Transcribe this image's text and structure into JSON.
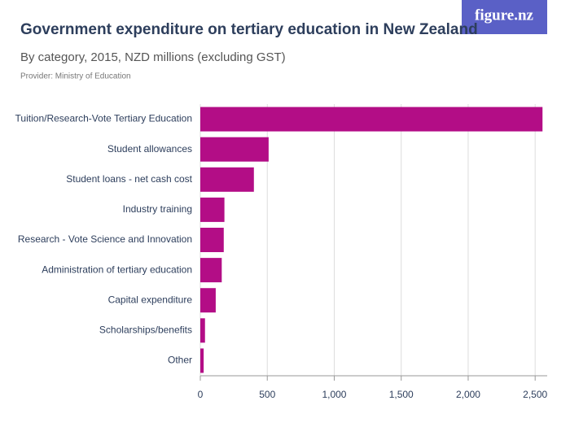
{
  "logo": "figure.nz",
  "chart_data": {
    "type": "hbar",
    "title": "Government expenditure on tertiary education in New Zealand",
    "subtitle": "By category, 2015, NZD millions (excluding GST)",
    "provider": "Provider: Ministry of Education",
    "categories": [
      "Tuition/Research-Vote Tertiary Education",
      "Student allowances",
      "Student loans - net cash cost",
      "Industry training",
      "Research - Vote Science and Innovation",
      "Administration of tertiary education",
      "Capital expenditure",
      "Scholarships/benefits",
      "Other"
    ],
    "values": [
      2555,
      510,
      400,
      180,
      175,
      160,
      115,
      35,
      25
    ],
    "color": "#b30d86",
    "xlim": [
      0,
      2590
    ],
    "xticks": [
      0,
      500,
      {
        "value": 1000,
        "label": "1,000"
      },
      {
        "value": 1500,
        "label": "1,500"
      },
      {
        "value": 2000,
        "label": "2,000"
      },
      {
        "value": 2500,
        "label": "2,500"
      }
    ],
    "grid": true
  }
}
